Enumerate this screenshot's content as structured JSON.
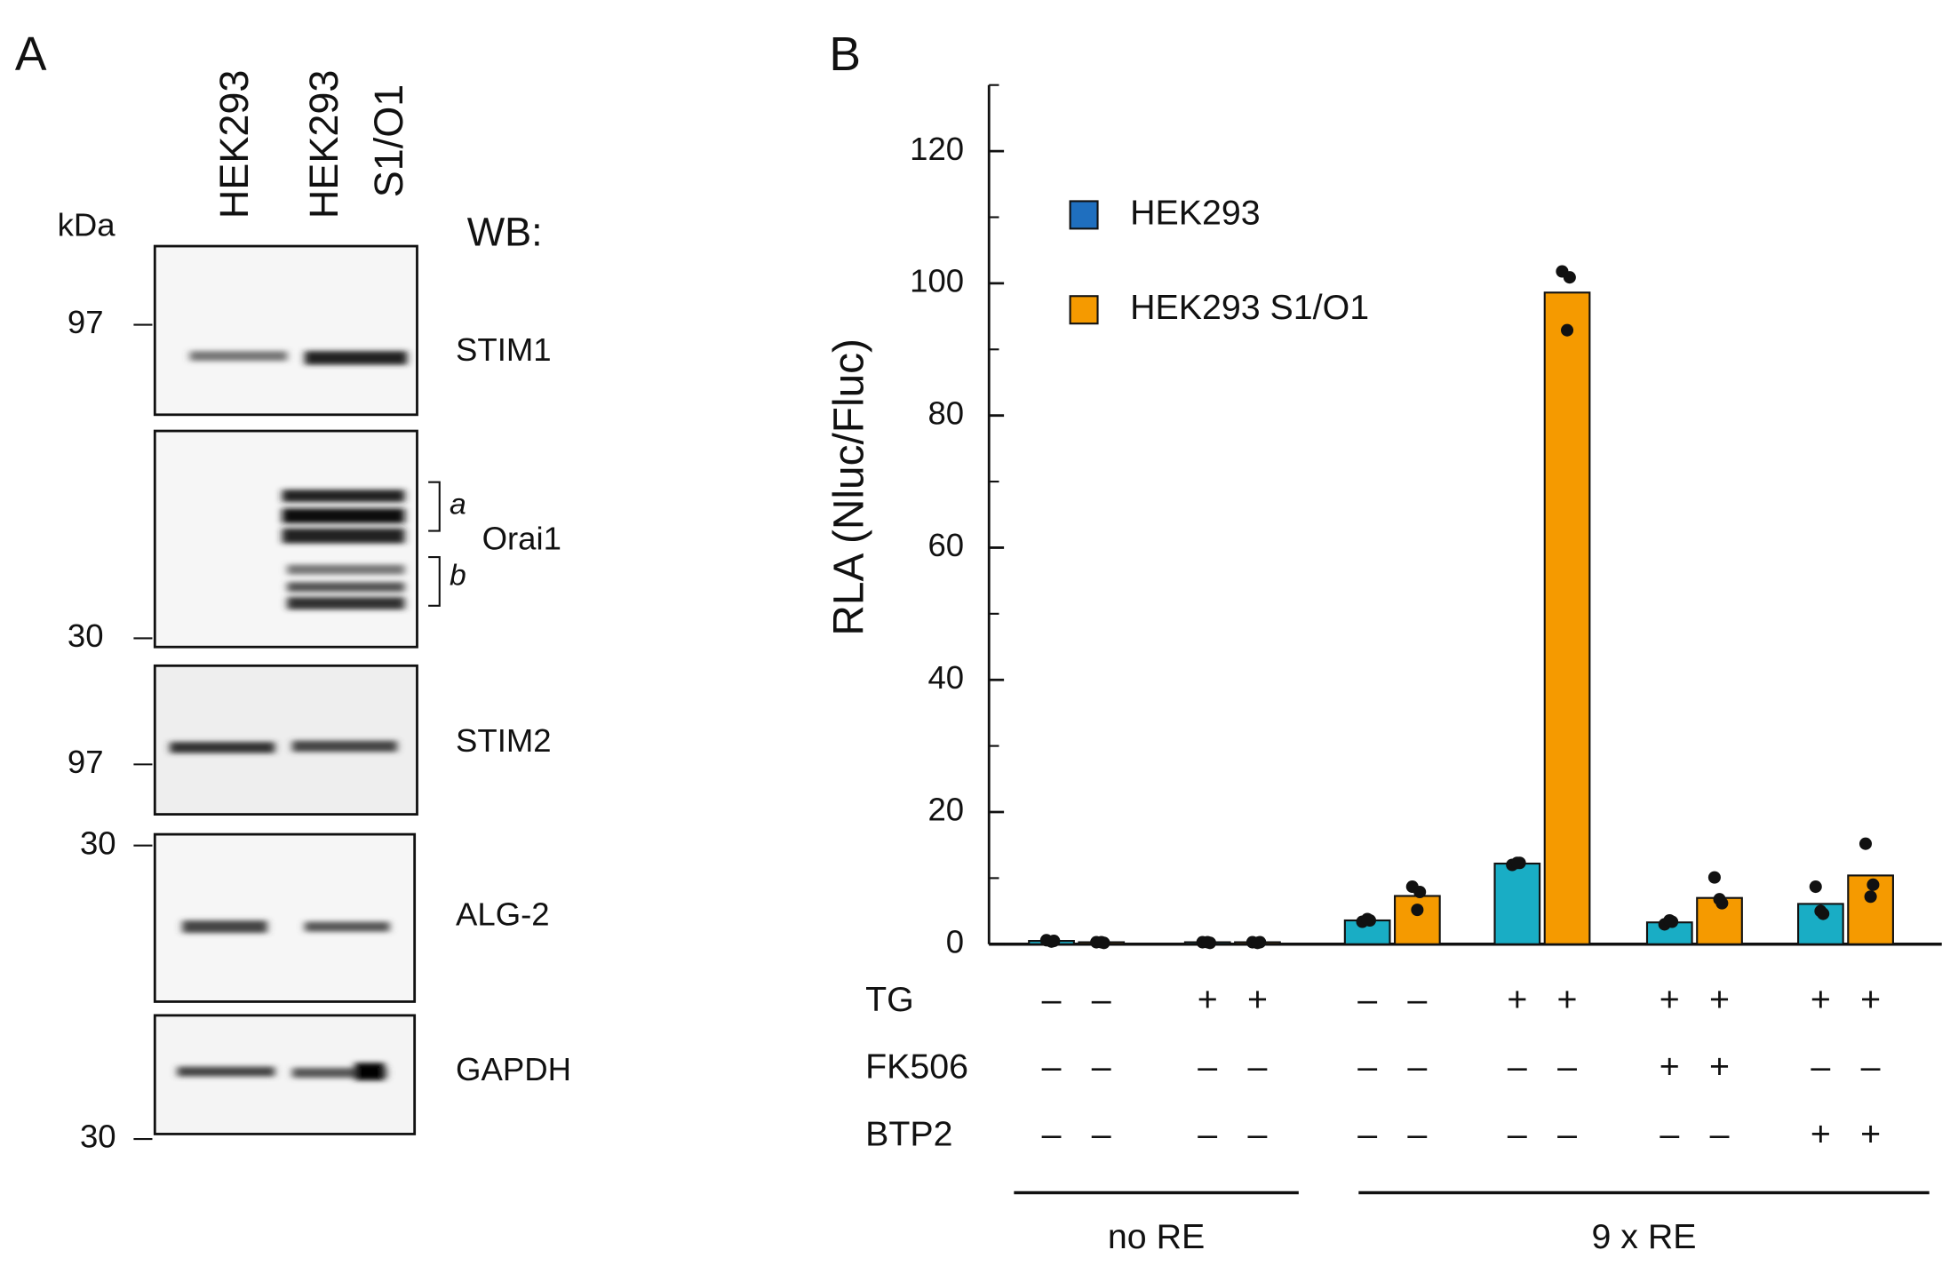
{
  "panel_a": {
    "label": "A",
    "kda": "kDa",
    "wb": "WB:",
    "lanes": [
      "HEK293",
      "HEK293",
      "S1/O1"
    ],
    "blots": [
      {
        "name": "STIM1",
        "marker": "97"
      },
      {
        "name": "Orai1",
        "marker": "30",
        "bands": [
          "a",
          "b"
        ]
      },
      {
        "name": "STIM2",
        "marker": "97"
      },
      {
        "name": "ALG-2",
        "marker": "30"
      },
      {
        "name": "GAPDH",
        "marker": "30"
      }
    ]
  },
  "chart_data": {
    "type": "bar",
    "panel_label": "B",
    "y_label": "RLA (Nluc/Fluc)",
    "ylim": [
      0,
      130
    ],
    "yticks": [
      0,
      20,
      40,
      60,
      80,
      100,
      120
    ],
    "minor_yticks": [
      10,
      30,
      50,
      70,
      90,
      110,
      130
    ],
    "series": [
      {
        "name": "HEK293",
        "color": "#19adc5",
        "legend_color": "#1f6fbf",
        "values": [
          0.5,
          0.3,
          3.6,
          12.2,
          3.3,
          6.1
        ],
        "replicates": [
          [
            0.6,
            0.5,
            0.4
          ],
          [
            0.3,
            0.2,
            0.3
          ],
          [
            3.4,
            3.6,
            3.8
          ],
          [
            12.0,
            12.3,
            12.3
          ],
          [
            3.0,
            3.4,
            3.6
          ],
          [
            8.7,
            4.6,
            5.0
          ]
        ]
      },
      {
        "name": "HEK293 S1/O1",
        "color": "#f59a00",
        "legend_color": "#f59a00",
        "values": [
          0.3,
          0.3,
          7.3,
          98.6,
          7.0,
          10.4
        ],
        "replicates": [
          [
            0.3,
            0.2,
            0.3
          ],
          [
            0.3,
            0.3,
            0.2
          ],
          [
            8.7,
            7.9,
            5.2
          ],
          [
            101.8,
            100.9,
            92.9
          ],
          [
            10.1,
            6.2,
            6.8
          ],
          [
            15.2,
            9.0,
            7.2
          ]
        ]
      }
    ],
    "conditions": [
      {
        "name": "TG",
        "marks": [
          "–",
          "–",
          "+",
          "+",
          "–",
          "–",
          "+",
          "+",
          "+",
          "+",
          "+",
          "+"
        ]
      },
      {
        "name": "FK506",
        "marks": [
          "–",
          "–",
          "–",
          "–",
          "–",
          "–",
          "–",
          "–",
          "+",
          "+",
          "–",
          "–"
        ]
      },
      {
        "name": "BTP2",
        "marks": [
          "–",
          "–",
          "–",
          "–",
          "–",
          "–",
          "–",
          "–",
          "–",
          "–",
          "+",
          "+"
        ]
      }
    ],
    "groups": [
      "no RE",
      "9 x RE"
    ]
  }
}
